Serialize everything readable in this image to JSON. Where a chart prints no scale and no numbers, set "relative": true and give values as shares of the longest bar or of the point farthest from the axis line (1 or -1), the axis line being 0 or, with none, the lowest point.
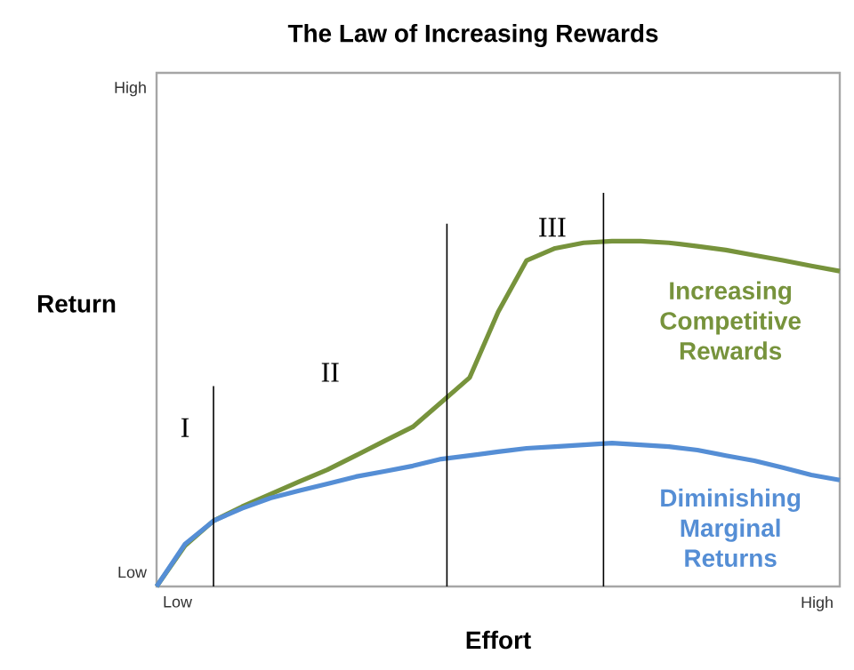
{
  "chart_data": {
    "type": "line",
    "title": "The Law of Increasing Rewards",
    "xlabel": "Effort",
    "ylabel": "Return",
    "relative": true,
    "categories": [
      null,
      null,
      null,
      null,
      null,
      null,
      null,
      null,
      null,
      null,
      null,
      null,
      null,
      null,
      null,
      null,
      null,
      null,
      null,
      null,
      null,
      null,
      null,
      null,
      null
    ],
    "series": [
      {
        "name": "Increasing Competitive Rewards",
        "color": "#77933c",
        "values": [
          0,
          0.118,
          0.19,
          0.231,
          0.267,
          0.303,
          0.338,
          0.379,
          0.421,
          0.462,
          0.533,
          0.605,
          0.795,
          0.944,
          0.979,
          0.995,
          1,
          1,
          0.995,
          0.985,
          0.974,
          0.959,
          0.944,
          0.928,
          0.913
        ]
      },
      {
        "name": "Diminishing Marginal Returns",
        "color": "#558ed5",
        "values": [
          0,
          0.123,
          0.19,
          0.226,
          0.256,
          0.277,
          0.297,
          0.318,
          0.333,
          0.349,
          0.369,
          0.379,
          0.39,
          0.4,
          0.405,
          0.41,
          0.415,
          0.41,
          0.405,
          0.395,
          0.379,
          0.364,
          0.344,
          0.323,
          0.308
        ]
      }
    ],
    "annotations": [
      "Low",
      "High",
      "Low",
      "High",
      "I",
      "II",
      "III"
    ],
    "legend": false,
    "marker": "none",
    "line_style": "solid"
  }
}
